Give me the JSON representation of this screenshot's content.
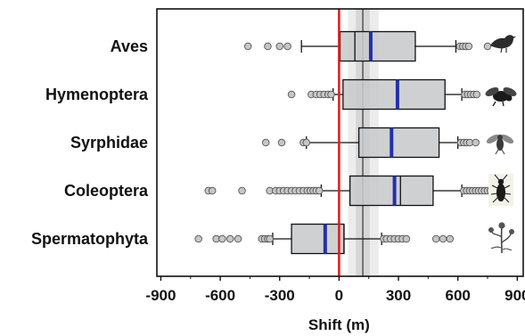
{
  "chart_data": {
    "type": "boxplot",
    "xlabel": "Shift (m)",
    "xlim": [
      -920,
      930
    ],
    "xticks": [
      -900,
      -600,
      -300,
      0,
      300,
      600,
      900
    ],
    "xtick_labels": [
      "-900",
      "-600",
      "-300",
      "0",
      "300",
      "600",
      "900"
    ],
    "reference_line": {
      "x": 0,
      "color": "#e02020"
    },
    "reference_band": {
      "center": 120,
      "inner": [
        85,
        155
      ],
      "outer": [
        45,
        200
      ]
    },
    "categories": [
      "Aves",
      "Hymenoptera",
      "Syrphidae",
      "Coleoptera",
      "Spermatophyta"
    ],
    "icons": [
      "bird-icon",
      "bee-icon",
      "hoverfly-icon",
      "beetle-icon",
      "plant-icon"
    ],
    "colors": {
      "box_fill": "#c8c9cc",
      "mean_line": "#2430a8",
      "zero_line": "#e02020",
      "outlier_fill": "#c6c6c6",
      "band_outer": "#ececec",
      "band_inner": "#d6d6d6"
    },
    "boxes": [
      {
        "name": "Aves",
        "whisker_low": -190,
        "q1": 5,
        "median": 80,
        "mean": 160,
        "q3": 385,
        "whisker_high": 590,
        "outliers": [
          -460,
          -360,
          -300,
          -260,
          610,
          625,
          640,
          655,
          750
        ]
      },
      {
        "name": "Hymenoptera",
        "whisker_low": -30,
        "q1": 20,
        "median": 290,
        "mean": 295,
        "q3": 535,
        "whisker_high": 620,
        "outliers": [
          -240,
          -140,
          -115,
          -95,
          -75,
          -55,
          -40,
          635,
          650,
          665,
          680,
          695
        ]
      },
      {
        "name": "Syrphidae",
        "whisker_low": -165,
        "q1": 100,
        "median": 270,
        "mean": 265,
        "q3": 505,
        "whisker_high": 600,
        "outliers": [
          -370,
          -290,
          -180,
          -165,
          615,
          630,
          645,
          660,
          690
        ]
      },
      {
        "name": "Coleoptera",
        "whisker_low": -90,
        "q1": 55,
        "median": 310,
        "mean": 280,
        "q3": 475,
        "whisker_high": 620,
        "outliers": [
          -660,
          -640,
          -490,
          -350,
          -320,
          -300,
          -280,
          -260,
          -240,
          -220,
          -200,
          -180,
          -160,
          -145,
          -130,
          -115,
          -100,
          630,
          645,
          660,
          675,
          690,
          705,
          720,
          735,
          750,
          765
        ]
      },
      {
        "name": "Spermatophyta",
        "whisker_low": -335,
        "q1": -240,
        "median": 25,
        "mean": -70,
        "q3": 25,
        "whisker_high": 215,
        "outliers": [
          -710,
          -620,
          -590,
          -550,
          -510,
          -390,
          -375,
          -360,
          -350,
          225,
          240,
          260,
          280,
          300,
          320,
          340,
          490,
          525,
          560
        ]
      }
    ]
  }
}
